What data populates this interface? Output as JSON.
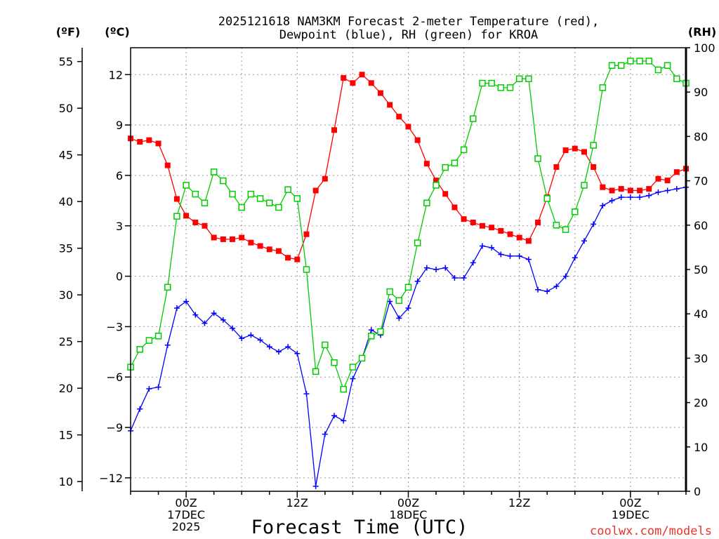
{
  "chart_data": {
    "type": "line",
    "title_line1": "2025121618 NAM3KM Forecast 2-meter Temperature (red),",
    "title_line2": "Dewpoint (blue), RH (green) for KROA",
    "unit_f": "(ºF)",
    "unit_c": "(ºC)",
    "unit_rh": "(RH)",
    "xlabel": "Forecast Time (UTC)",
    "watermark": "coolwx.com/models",
    "x_hours": {
      "start": 18,
      "step": 1,
      "end": 78
    },
    "xlim": [
      18,
      78
    ],
    "ylim_c": [
      -12.8,
      13.6
    ],
    "ylim_rh": [
      0,
      100
    ],
    "grid": true,
    "celsius_ticks": [
      {
        "v": 12,
        "label": "12"
      },
      {
        "v": 9,
        "label": "9"
      },
      {
        "v": 6,
        "label": "6"
      },
      {
        "v": 3,
        "label": "3"
      },
      {
        "v": 0,
        "label": "0"
      },
      {
        "v": -3,
        "label": "−3"
      },
      {
        "v": -6,
        "label": "−6"
      },
      {
        "v": -9,
        "label": "−9"
      },
      {
        "v": -12,
        "label": "−12"
      }
    ],
    "fahrenheit_ticks": [
      {
        "v": 55,
        "label": "55"
      },
      {
        "v": 50,
        "label": "50"
      },
      {
        "v": 45,
        "label": "45"
      },
      {
        "v": 40,
        "label": "40"
      },
      {
        "v": 35,
        "label": "35"
      },
      {
        "v": 30,
        "label": "30"
      },
      {
        "v": 25,
        "label": "25"
      },
      {
        "v": 20,
        "label": "20"
      },
      {
        "v": 15,
        "label": "15"
      },
      {
        "v": 10,
        "label": "10"
      }
    ],
    "rh_ticks": [
      {
        "v": 100,
        "label": "100"
      },
      {
        "v": 90,
        "label": "90"
      },
      {
        "v": 80,
        "label": "80"
      },
      {
        "v": 70,
        "label": "70"
      },
      {
        "v": 60,
        "label": "60"
      },
      {
        "v": 50,
        "label": "50"
      },
      {
        "v": 40,
        "label": "40"
      },
      {
        "v": 30,
        "label": "30"
      },
      {
        "v": 20,
        "label": "20"
      },
      {
        "v": 10,
        "label": "10"
      },
      {
        "v": 0,
        "label": "0"
      }
    ],
    "x_ticks": [
      {
        "hour": 24,
        "lines": [
          "00Z",
          "17DEC",
          "2025"
        ]
      },
      {
        "hour": 36,
        "lines": [
          "12Z"
        ]
      },
      {
        "hour": 48,
        "lines": [
          "00Z",
          "18DEC"
        ]
      },
      {
        "hour": 60,
        "lines": [
          "12Z"
        ]
      },
      {
        "hour": 72,
        "lines": [
          "00Z",
          "19DEC"
        ]
      }
    ],
    "series": [
      {
        "name": "Temperature",
        "unit": "C",
        "axis": "left",
        "color": "#ff0000",
        "marker": "filled-square",
        "values": [
          8.2,
          8.0,
          8.1,
          7.9,
          6.6,
          4.6,
          3.6,
          3.2,
          3.0,
          2.3,
          2.2,
          2.2,
          2.3,
          2.0,
          1.8,
          1.6,
          1.5,
          1.1,
          1.0,
          2.5,
          5.1,
          5.8,
          8.7,
          11.8,
          11.5,
          12.0,
          11.5,
          10.9,
          10.2,
          9.5,
          8.9,
          8.1,
          6.7,
          5.7,
          4.9,
          4.1,
          3.4,
          3.2,
          3.0,
          2.9,
          2.7,
          2.5,
          2.3,
          2.1,
          3.2,
          4.7,
          6.5,
          7.5,
          7.6,
          7.4,
          6.5,
          5.3,
          5.1,
          5.2,
          5.1,
          5.1,
          5.2,
          5.8,
          5.7,
          6.2,
          6.4
        ]
      },
      {
        "name": "Dewpoint",
        "unit": "C",
        "axis": "left",
        "color": "#0000ff",
        "marker": "plus",
        "values": [
          -9.2,
          -7.9,
          -6.7,
          -6.6,
          -4.1,
          -1.9,
          -1.5,
          -2.3,
          -2.8,
          -2.2,
          -2.6,
          -3.1,
          -3.7,
          -3.5,
          -3.8,
          -4.2,
          -4.5,
          -4.2,
          -4.6,
          -7.0,
          -12.5,
          -9.4,
          -8.3,
          -8.6,
          -6.1,
          -4.9,
          -3.2,
          -3.5,
          -1.5,
          -2.5,
          -1.9,
          -0.3,
          0.5,
          0.4,
          0.5,
          -0.1,
          -0.1,
          0.8,
          1.8,
          1.7,
          1.3,
          1.2,
          1.2,
          1.0,
          -0.8,
          -0.9,
          -0.6,
          0.0,
          1.1,
          2.1,
          3.1,
          4.2,
          4.5,
          4.7,
          4.7,
          4.7,
          4.8,
          5.0,
          5.1,
          5.2,
          5.3
        ]
      },
      {
        "name": "RH",
        "unit": "%",
        "axis": "right",
        "color": "#00cc00",
        "marker": "open-square",
        "values": [
          28,
          32,
          34,
          35,
          46,
          62,
          69,
          67,
          65,
          72,
          70,
          67,
          64,
          67,
          66,
          65,
          64,
          68,
          66,
          50,
          27,
          33,
          29,
          23,
          28,
          30,
          35,
          36,
          45,
          43,
          46,
          56,
          65,
          69,
          73,
          74,
          77,
          84,
          92,
          92,
          91,
          91,
          93,
          93,
          75,
          66,
          60,
          59,
          63,
          69,
          78,
          91,
          96,
          96,
          97,
          97,
          97,
          95,
          96,
          93,
          92
        ]
      }
    ]
  }
}
